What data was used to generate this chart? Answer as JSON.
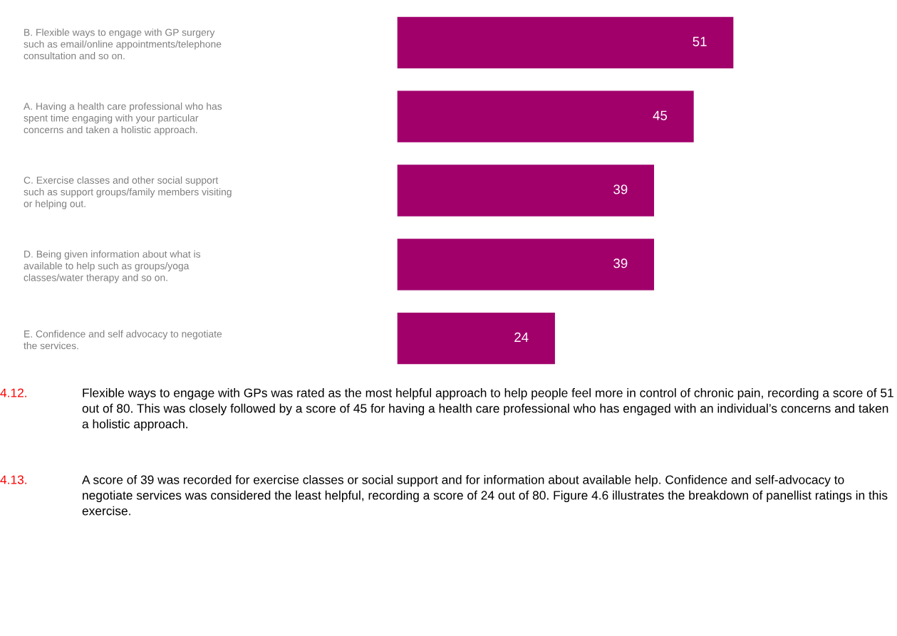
{
  "chart_data": {
    "type": "bar",
    "orientation": "horizontal",
    "categories": [
      "B. Flexible ways to engage with GP surgery\nsuch as email/online appointments/telephone\nconsultation and so on.",
      "A. Having a health care professional who has\nspent time engaging with your particular\nconcerns and taken a holistic approach.",
      "C. Exercise classes and other social support\nsuch as support groups/family members visiting\nor helping out.",
      "D. Being given information about what is\navailable to help such as groups/yoga\nclasses/water therapy and so on.",
      "E. Confidence and self advocacy to negotiate\nthe services."
    ],
    "values": [
      51,
      45,
      39,
      39,
      24
    ],
    "color": "#a1006b",
    "data_labels": true,
    "grid": false,
    "legend": false,
    "tick_labels": "y",
    "annotations": [
      "4.12.",
      "Flexible ways to engage with GPs was rated as the most helpful approach to help people feel more in control of chronic pain, recording a score of 51 out of 80. This was closely followed by a score of 45 for having a health care professional who has engaged with an individual’s concerns and taken a holistic approach.",
      "4.13.",
      "A score of 39 was recorded for exercise classes or social support and for information about available help. Confidence and self-advocacy to negotiate services was considered the least helpful, recording a score of 24 out of 80. Figure 4.6 illustrates the breakdown of panellist ratings in this exercise."
    ]
  }
}
